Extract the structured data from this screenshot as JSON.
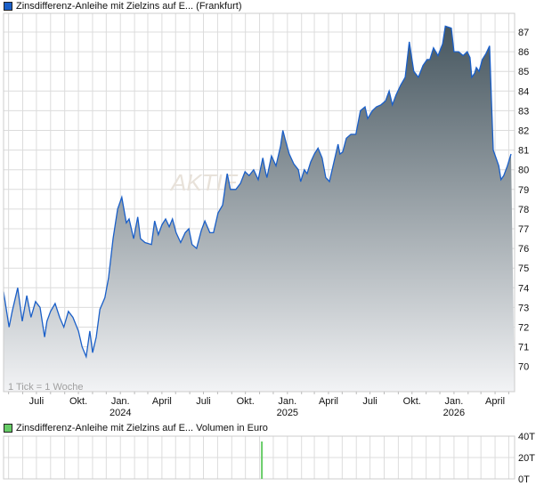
{
  "legend_main": {
    "label": "Zinsdifferenz-Anleihe mit Zielzins auf E... (Frankfurt)",
    "color": "#1a5fc8"
  },
  "legend_volume": {
    "label": "Zinsdifferenz-Anleihe mit Zielzins auf E... Volumen in Euro",
    "color": "#66cc66"
  },
  "tick_note": "1 Tick = 1 Woche",
  "watermark": "AKTIE",
  "chart_data": [
    {
      "type": "area",
      "ylim": [
        69,
        88
      ],
      "y_ticks": [
        70,
        71,
        72,
        73,
        74,
        75,
        76,
        77,
        78,
        79,
        80,
        81,
        82,
        83,
        84,
        85,
        86,
        87
      ],
      "x_ticks": [
        {
          "date": "2023-07-01",
          "label": "Juli",
          "year": ""
        },
        {
          "date": "2023-10-01",
          "label": "Okt.",
          "year": ""
        },
        {
          "date": "2024-01-01",
          "label": "Jan.",
          "year": "2024"
        },
        {
          "date": "2024-04-01",
          "label": "April",
          "year": ""
        },
        {
          "date": "2024-07-01",
          "label": "Juli",
          "year": ""
        },
        {
          "date": "2024-10-01",
          "label": "Okt.",
          "year": ""
        },
        {
          "date": "2025-01-01",
          "label": "Jan.",
          "year": "2025"
        },
        {
          "date": "2025-04-01",
          "label": "April",
          "year": ""
        },
        {
          "date": "2025-07-01",
          "label": "Juli",
          "year": ""
        },
        {
          "date": "2025-10-01",
          "label": "Okt.",
          "year": ""
        },
        {
          "date": "2026-01-01",
          "label": "Jan.",
          "year": "2026"
        },
        {
          "date": "2026-04-01",
          "label": "April",
          "year": ""
        }
      ],
      "grid": true,
      "colors": {
        "line": "#1a5fc8",
        "fill_top": "#46565f",
        "fill_bottom": "#f2f3f5"
      },
      "points": [
        [
          "2023-04-20",
          73.8
        ],
        [
          "2023-05-02",
          72.0
        ],
        [
          "2023-05-09",
          72.8
        ],
        [
          "2023-05-21",
          74.0
        ],
        [
          "2023-05-31",
          72.3
        ],
        [
          "2023-06-10",
          73.6
        ],
        [
          "2023-06-19",
          72.5
        ],
        [
          "2023-06-29",
          73.3
        ],
        [
          "2023-07-09",
          73.0
        ],
        [
          "2023-07-19",
          71.5
        ],
        [
          "2023-07-24",
          72.3
        ],
        [
          "2023-08-01",
          72.8
        ],
        [
          "2023-08-11",
          73.2
        ],
        [
          "2023-08-21",
          72.5
        ],
        [
          "2023-08-30",
          72.0
        ],
        [
          "2023-09-09",
          72.8
        ],
        [
          "2023-09-19",
          72.5
        ],
        [
          "2023-10-01",
          71.8
        ],
        [
          "2023-10-09",
          71.0
        ],
        [
          "2023-10-18",
          70.5
        ],
        [
          "2023-10-26",
          71.8
        ],
        [
          "2023-11-01",
          70.7
        ],
        [
          "2023-11-09",
          71.5
        ],
        [
          "2023-11-17",
          72.9
        ],
        [
          "2023-11-28",
          73.5
        ],
        [
          "2023-12-06",
          74.5
        ],
        [
          "2023-12-16",
          76.5
        ],
        [
          "2023-12-26",
          78.0
        ],
        [
          "2024-01-04",
          78.6
        ],
        [
          "2024-01-14",
          77.3
        ],
        [
          "2024-01-20",
          77.5
        ],
        [
          "2024-01-30",
          76.5
        ],
        [
          "2024-02-08",
          77.6
        ],
        [
          "2024-02-14",
          76.5
        ],
        [
          "2024-02-24",
          76.3
        ],
        [
          "2024-03-09",
          76.2
        ],
        [
          "2024-03-16",
          77.4
        ],
        [
          "2024-03-24",
          76.7
        ],
        [
          "2024-04-01",
          77.2
        ],
        [
          "2024-04-09",
          77.5
        ],
        [
          "2024-04-17",
          77.1
        ],
        [
          "2024-04-24",
          77.5
        ],
        [
          "2024-05-02",
          76.8
        ],
        [
          "2024-05-12",
          76.3
        ],
        [
          "2024-05-22",
          76.8
        ],
        [
          "2024-05-30",
          77.0
        ],
        [
          "2024-06-06",
          76.2
        ],
        [
          "2024-06-16",
          76.0
        ],
        [
          "2024-06-26",
          76.9
        ],
        [
          "2024-07-04",
          77.4
        ],
        [
          "2024-07-15",
          76.8
        ],
        [
          "2024-07-23",
          76.8
        ],
        [
          "2024-08-02",
          77.8
        ],
        [
          "2024-08-12",
          78.2
        ],
        [
          "2024-08-22",
          79.8
        ],
        [
          "2024-08-29",
          79.0
        ],
        [
          "2024-09-10",
          79.0
        ],
        [
          "2024-09-20",
          79.3
        ],
        [
          "2024-09-30",
          79.9
        ],
        [
          "2024-10-09",
          79.7
        ],
        [
          "2024-10-19",
          80.0
        ],
        [
          "2024-10-29",
          79.5
        ],
        [
          "2024-11-08",
          80.6
        ],
        [
          "2024-11-13",
          80.0
        ],
        [
          "2024-11-17",
          79.6
        ],
        [
          "2024-11-27",
          80.7
        ],
        [
          "2024-12-07",
          80.2
        ],
        [
          "2024-12-17",
          81.2
        ],
        [
          "2024-12-22",
          82.0
        ],
        [
          "2024-12-30",
          81.3
        ],
        [
          "2025-01-05",
          80.8
        ],
        [
          "2025-01-15",
          80.3
        ],
        [
          "2025-01-25",
          80.0
        ],
        [
          "2025-01-30",
          79.4
        ],
        [
          "2025-02-07",
          80.0
        ],
        [
          "2025-02-13",
          79.8
        ],
        [
          "2025-02-21",
          80.4
        ],
        [
          "2025-03-01",
          80.8
        ],
        [
          "2025-03-09",
          81.1
        ],
        [
          "2025-03-18",
          80.6
        ],
        [
          "2025-03-26",
          79.6
        ],
        [
          "2025-04-03",
          79.4
        ],
        [
          "2025-04-13",
          80.4
        ],
        [
          "2025-04-22",
          81.3
        ],
        [
          "2025-04-26",
          80.8
        ],
        [
          "2025-05-02",
          80.9
        ],
        [
          "2025-05-10",
          81.6
        ],
        [
          "2025-05-20",
          81.8
        ],
        [
          "2025-05-31",
          81.8
        ],
        [
          "2025-06-10",
          83.0
        ],
        [
          "2025-06-20",
          83.2
        ],
        [
          "2025-06-26",
          82.6
        ],
        [
          "2025-07-06",
          83.0
        ],
        [
          "2025-07-15",
          83.2
        ],
        [
          "2025-07-25",
          83.3
        ],
        [
          "2025-08-04",
          83.5
        ],
        [
          "2025-08-12",
          84.0
        ],
        [
          "2025-08-19",
          83.3
        ],
        [
          "2025-08-27",
          83.8
        ],
        [
          "2025-09-06",
          84.3
        ],
        [
          "2025-09-16",
          84.7
        ],
        [
          "2025-09-25",
          86.5
        ],
        [
          "2025-10-05",
          85.0
        ],
        [
          "2025-10-15",
          84.7
        ],
        [
          "2025-10-25",
          85.3
        ],
        [
          "2025-11-03",
          85.6
        ],
        [
          "2025-11-09",
          85.6
        ],
        [
          "2025-11-17",
          86.2
        ],
        [
          "2025-11-27",
          85.8
        ],
        [
          "2025-12-07",
          86.4
        ],
        [
          "2025-12-13",
          87.3
        ],
        [
          "2025-12-26",
          87.2
        ],
        [
          "2026-01-01",
          86.0
        ],
        [
          "2026-01-11",
          86.0
        ],
        [
          "2026-01-21",
          85.8
        ],
        [
          "2026-01-30",
          86.0
        ],
        [
          "2026-02-05",
          85.7
        ],
        [
          "2026-02-09",
          84.7
        ],
        [
          "2026-02-15",
          84.9
        ],
        [
          "2026-02-19",
          85.2
        ],
        [
          "2026-02-25",
          85.0
        ],
        [
          "2026-03-04",
          85.6
        ],
        [
          "2026-03-12",
          85.9
        ],
        [
          "2026-03-20",
          86.3
        ],
        [
          "2026-03-24",
          83.5
        ],
        [
          "2026-03-28",
          81.0
        ],
        [
          "2026-04-03",
          80.6
        ],
        [
          "2026-04-09",
          80.2
        ],
        [
          "2026-04-14",
          79.5
        ],
        [
          "2026-04-20",
          79.7
        ],
        [
          "2026-04-28",
          80.2
        ],
        [
          "2026-05-06",
          80.8
        ]
      ]
    },
    {
      "type": "bar",
      "ylim": [
        0,
        40000
      ],
      "y_ticks": [
        {
          "value": 40000,
          "label": "40T"
        },
        {
          "value": 20000,
          "label": "20T"
        },
        {
          "value": 0,
          "label": "0T"
        }
      ],
      "grid": true,
      "bars": [
        [
          "2024-11-06",
          35000
        ]
      ]
    }
  ]
}
